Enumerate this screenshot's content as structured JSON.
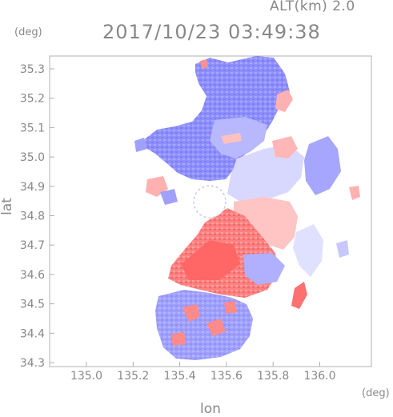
{
  "header": {
    "altitude_label": "ALT(km) 2.0",
    "timestamp": "2017/10/23 03:49:38"
  },
  "axes": {
    "y_unit": "(deg)",
    "x_unit": "(deg)",
    "y_title": "lat",
    "x_title": "lon",
    "y_ticks": [
      "35.3",
      "35.2",
      "35.1",
      "35.0",
      "34.9",
      "34.8",
      "34.7",
      "34.6",
      "34.5",
      "34.4",
      "34.3"
    ],
    "x_ticks": [
      "135.0",
      "135.2",
      "135.4",
      "135.6",
      "135.8",
      "136.0"
    ]
  },
  "colors": {
    "approaching": "#8c8cff",
    "receding": "#ff7a7a",
    "frame": "#b0b0b0",
    "text": "#888888"
  }
}
